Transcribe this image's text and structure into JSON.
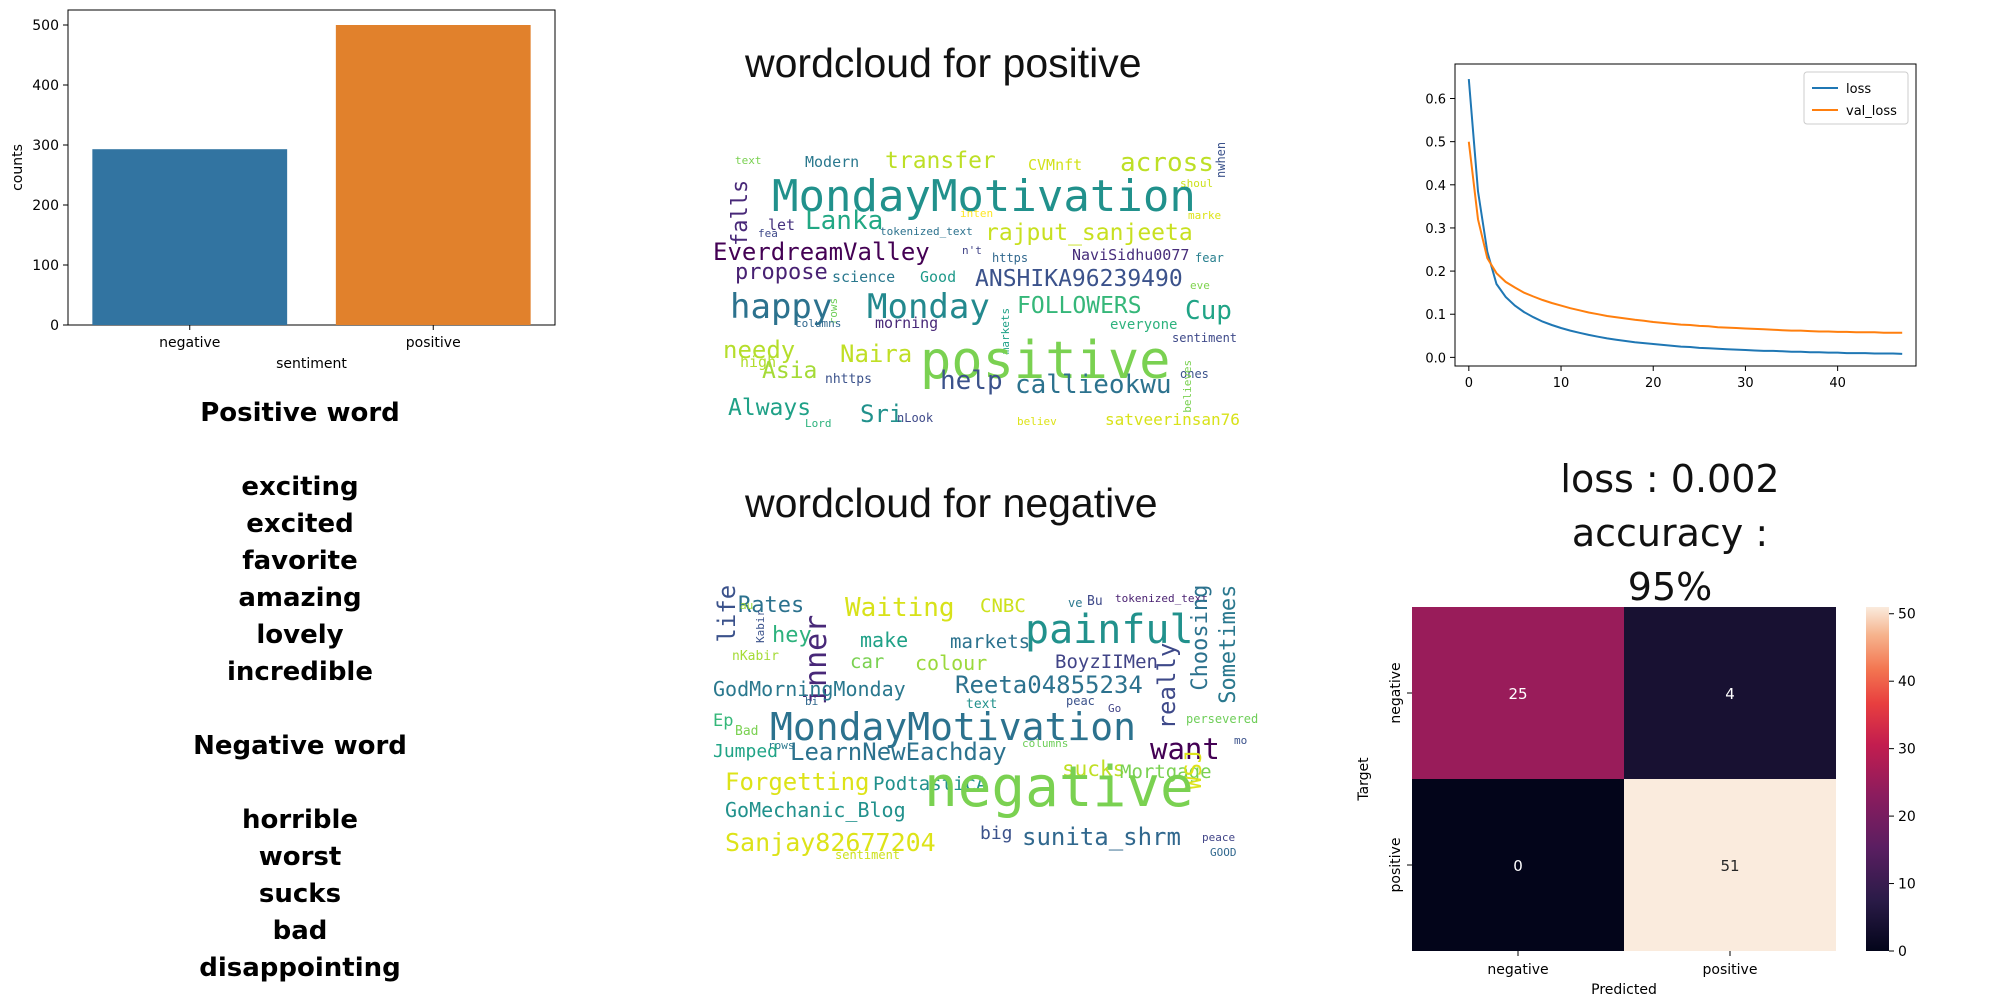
{
  "chart_data": [
    {
      "type": "bar",
      "categories": [
        "negative",
        "positive"
      ],
      "values": [
        293,
        500
      ],
      "colors": [
        "#3274a1",
        "#e1812c"
      ],
      "xlabel": "sentiment",
      "ylabel": "counts",
      "ylim": [
        0,
        525
      ],
      "yticks": [
        "0",
        "100",
        "200",
        "300",
        "400",
        "500"
      ]
    },
    {
      "type": "line",
      "x": [
        0,
        1,
        2,
        3,
        4,
        5,
        6,
        7,
        8,
        9,
        10,
        11,
        12,
        13,
        14,
        15,
        16,
        17,
        18,
        19,
        20,
        21,
        22,
        23,
        24,
        25,
        26,
        27,
        28,
        29,
        30,
        31,
        32,
        33,
        34,
        35,
        36,
        37,
        38,
        39,
        40,
        41,
        42,
        43,
        44,
        45,
        46,
        47
      ],
      "series": [
        {
          "name": "loss",
          "color": "#1f77b4",
          "values": [
            0.645,
            0.385,
            0.245,
            0.17,
            0.14,
            0.12,
            0.105,
            0.093,
            0.083,
            0.075,
            0.068,
            0.062,
            0.057,
            0.052,
            0.048,
            0.044,
            0.041,
            0.038,
            0.035,
            0.033,
            0.031,
            0.029,
            0.027,
            0.025,
            0.024,
            0.022,
            0.021,
            0.02,
            0.019,
            0.018,
            0.017,
            0.016,
            0.015,
            0.015,
            0.014,
            0.013,
            0.013,
            0.012,
            0.012,
            0.011,
            0.011,
            0.01,
            0.01,
            0.01,
            0.009,
            0.009,
            0.009,
            0.008
          ]
        },
        {
          "name": "val_loss",
          "color": "#ff7f0e",
          "values": [
            0.5,
            0.32,
            0.23,
            0.195,
            0.175,
            0.162,
            0.15,
            0.141,
            0.133,
            0.126,
            0.12,
            0.114,
            0.109,
            0.104,
            0.1,
            0.096,
            0.093,
            0.09,
            0.087,
            0.085,
            0.082,
            0.08,
            0.078,
            0.076,
            0.075,
            0.073,
            0.072,
            0.07,
            0.069,
            0.068,
            0.067,
            0.066,
            0.065,
            0.064,
            0.063,
            0.062,
            0.062,
            0.061,
            0.06,
            0.06,
            0.059,
            0.059,
            0.058,
            0.058,
            0.058,
            0.057,
            0.057,
            0.057
          ]
        }
      ],
      "xlim": [
        -1.5,
        48.5
      ],
      "ylim": [
        -0.02,
        0.68
      ],
      "xticks": [
        0,
        10,
        20,
        30,
        40
      ],
      "yticks": [
        "0.0",
        "0.1",
        "0.2",
        "0.3",
        "0.4",
        "0.5",
        "0.6"
      ],
      "legend": "top-right"
    },
    {
      "type": "heatmap",
      "rows": [
        "negative",
        "positive"
      ],
      "cols": [
        "negative",
        "positive"
      ],
      "values": [
        [
          25,
          4
        ],
        [
          0,
          51
        ]
      ],
      "xlabel": "Predicted",
      "ylabel": "Target",
      "vmin": 0,
      "vmax": 51,
      "colorbar_ticks": [
        "0",
        "10",
        "20",
        "30",
        "40",
        "50"
      ]
    }
  ],
  "texts": {
    "wordcloud_positive_title": "wordcloud for positive",
    "wordcloud_negative_title": "wordcloud for negative",
    "positive_header": "Positive word",
    "positive_words": [
      "exciting",
      "excited",
      "favorite",
      "amazing",
      "lovely",
      "incredible"
    ],
    "negative_header": "Negative word",
    "negative_words": [
      "horrible",
      "worst",
      "sucks",
      "bad",
      "disappointing"
    ],
    "loss_line": "loss : 0.002",
    "accuracy_line": "accuracy : 95%"
  },
  "wordcloud_positive": [
    {
      "t": "text",
      "c": "#7ad151"
    },
    {
      "t": "Modern",
      "c": "#2a788e"
    },
    {
      "t": "transfer",
      "c": "#bddf26"
    },
    {
      "t": "CVMnft",
      "c": "#d2e21b"
    },
    {
      "t": "across",
      "c": "#bddf26"
    },
    {
      "t": "nwhen",
      "c": "#3b528b"
    },
    {
      "t": "falls",
      "c": "#482878"
    },
    {
      "t": "MondayMotivation",
      "c": "#21918c"
    },
    {
      "t": "shoul",
      "c": "#cde11d"
    },
    {
      "t": "Lanka",
      "c": "#22a884"
    },
    {
      "t": "inten",
      "c": "#fde725"
    },
    {
      "t": "marke",
      "c": "#dde318"
    },
    {
      "t": "let",
      "c": "#46327e"
    },
    {
      "t": "tokenized_text",
      "c": "#2c728e"
    },
    {
      "t": "rajput_sanjeeta",
      "c": "#c8e020"
    },
    {
      "t": "fea",
      "c": "#3e4989"
    },
    {
      "t": "EverdreamValley",
      "c": "#440154"
    },
    {
      "t": "n't",
      "c": "#414487"
    },
    {
      "t": "https",
      "c": "#31688e"
    },
    {
      "t": "NaviSidhu0077",
      "c": "#472d7b"
    },
    {
      "t": "fear",
      "c": "#277f8e"
    },
    {
      "t": "propose",
      "c": "#482173"
    },
    {
      "t": "science",
      "c": "#2a788e"
    },
    {
      "t": "Good",
      "c": "#1f9a8a"
    },
    {
      "t": "ANSHIKA96239490",
      "c": "#3b528b"
    },
    {
      "t": "eve",
      "c": "#7fd34e"
    },
    {
      "t": "happy",
      "c": "#2c728e"
    },
    {
      "t": "Monday",
      "c": "#23898e"
    },
    {
      "t": "FOLLOWERS",
      "c": "#35b779"
    },
    {
      "t": "Cup",
      "c": "#20a486"
    },
    {
      "t": "rows",
      "c": "#6ece58"
    },
    {
      "t": "columns",
      "c": "#31688e"
    },
    {
      "t": "morning",
      "c": "#482878"
    },
    {
      "t": "markets",
      "c": "#1fa187"
    },
    {
      "t": "everyone",
      "c": "#2db27d"
    },
    {
      "t": "needy",
      "c": "#b5de2b"
    },
    {
      "t": "Naira",
      "c": "#c0df25"
    },
    {
      "t": "positive",
      "c": "#7ad151"
    },
    {
      "t": "sentiment",
      "c": "#3e4989"
    },
    {
      "t": "high",
      "c": "#b2dd2d"
    },
    {
      "t": "Asia",
      "c": "#a5db36"
    },
    {
      "t": "ones",
      "c": "#3b528b"
    },
    {
      "t": "nhttps",
      "c": "#3b528b"
    },
    {
      "t": "help",
      "c": "#3b528b"
    },
    {
      "t": "callieokwu",
      "c": "#2c728e"
    },
    {
      "t": "believes",
      "c": "#7ad151"
    },
    {
      "t": "Always",
      "c": "#1fa187"
    },
    {
      "t": "Sri",
      "c": "#21918c"
    },
    {
      "t": "nLook",
      "c": "#3e4989"
    },
    {
      "t": "Lord",
      "c": "#2db27d"
    },
    {
      "t": "believ",
      "c": "#dde318"
    },
    {
      "t": "satveerinsan76",
      "c": "#d8e219"
    }
  ],
  "wordcloud_negative": [
    {
      "t": "life",
      "c": "#3b528b"
    },
    {
      "t": "Rates",
      "c": "#2c728e"
    },
    {
      "t": "au",
      "c": "#a0da39"
    },
    {
      "t": "Waiting",
      "c": "#d8e219"
    },
    {
      "t": "CNBC",
      "c": "#cde11d"
    },
    {
      "t": "ve",
      "c": "#2a788e"
    },
    {
      "t": "Bu",
      "c": "#3e4989"
    },
    {
      "t": "tokenized_text",
      "c": "#481f70"
    },
    {
      "t": "Choosing",
      "c": "#2c728e"
    },
    {
      "t": "Sometimes",
      "c": "#2a788e"
    },
    {
      "t": "Kabir",
      "c": "#3b528b"
    },
    {
      "t": "hey",
      "c": "#2db27d"
    },
    {
      "t": "make",
      "c": "#1fa187"
    },
    {
      "t": "markets",
      "c": "#2c728e"
    },
    {
      "t": "painful",
      "c": "#21918c"
    },
    {
      "t": "inner",
      "c": "#482878"
    },
    {
      "t": "nKabir",
      "c": "#a5db36"
    },
    {
      "t": "car",
      "c": "#7ad151"
    },
    {
      "t": "colour",
      "c": "#9bd93c"
    },
    {
      "t": "BoyzIIMen",
      "c": "#414487"
    },
    {
      "t": "really",
      "c": "#3e4989"
    },
    {
      "t": "GodMorningMonday",
      "c": "#2a788e"
    },
    {
      "t": "Reeta04855234",
      "c": "#2c728e"
    },
    {
      "t": "bi",
      "c": "#31688e"
    },
    {
      "t": "text",
      "c": "#21918c"
    },
    {
      "t": "peac",
      "c": "#3b528b"
    },
    {
      "t": "Go",
      "c": "#414487"
    },
    {
      "t": "Ep",
      "c": "#35b779"
    },
    {
      "t": "MondayMotivation",
      "c": "#2c728e"
    },
    {
      "t": "persevered",
      "c": "#6ece58"
    },
    {
      "t": "Bad",
      "c": "#7ad151"
    },
    {
      "t": "rows",
      "c": "#2a788e"
    },
    {
      "t": "columns",
      "c": "#6ece58"
    },
    {
      "t": "mo",
      "c": "#3b528b"
    },
    {
      "t": "Jumped",
      "c": "#20a486"
    },
    {
      "t": "LearnNewEachday",
      "c": "#2c728e"
    },
    {
      "t": "want",
      "c": "#440154"
    },
    {
      "t": "sucks",
      "c": "#c0df25"
    },
    {
      "t": "Mortgage",
      "c": "#7ad151"
    },
    {
      "t": "Forgetting",
      "c": "#dde318"
    },
    {
      "t": "PodtasticA",
      "c": "#21918c"
    },
    {
      "t": "WSJ",
      "c": "#dde318"
    },
    {
      "t": "negative",
      "c": "#7ad151"
    },
    {
      "t": "GoMechanic_Blog",
      "c": "#21918c"
    },
    {
      "t": "Sanjay82677204",
      "c": "#dde318"
    },
    {
      "t": "sentiment",
      "c": "#cde11d"
    },
    {
      "t": "big",
      "c": "#3b528b"
    },
    {
      "t": "sunita_shrm",
      "c": "#31688e"
    },
    {
      "t": "peace",
      "c": "#414487"
    },
    {
      "t": "GOOD",
      "c": "#31688e"
    }
  ]
}
